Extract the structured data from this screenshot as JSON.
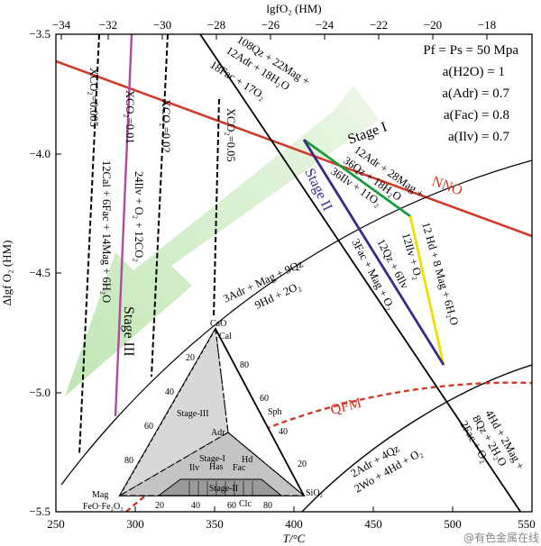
{
  "axes": {
    "bottom_label": "T/°C",
    "top_label": "lgfO₂ (HM)",
    "left_label": "Δlgf O₂ (HM)",
    "bottom_ticks": [
      "250",
      "300",
      "350",
      "400",
      "450",
      "500",
      "550"
    ],
    "top_ticks": [
      "−34",
      "−32",
      "−30",
      "−28",
      "−26",
      "−24",
      "−22",
      "−20",
      "−18"
    ],
    "left_ticks": [
      "−3.5",
      "−4.0",
      "−4.5",
      "−5.0",
      "−5.5"
    ]
  },
  "conditions": [
    "Pf = Ps = 50 Mpa",
    "a(H2O) = 1",
    "a(Adr) = 0.7",
    "a(Fac) = 0.8",
    "a(Ilv) = 0.7"
  ],
  "buffers": {
    "nno": "NNO",
    "qfm": "QFM"
  },
  "stages": {
    "stage1": "Stage I",
    "stage2": "Stage II",
    "stage3": "Stage III"
  },
  "reactions": {
    "adr_mag_top": "108Qz + 22Mag +",
    "adr_mag_mid": "12Adr + 18H₂O",
    "adr_mag_bot": "18Fac + 17O₂",
    "green_1": "12Adr + 28Mag +",
    "green_2": "36Qz + 18H₂O",
    "green_3": "36Ilv + 11O₂",
    "yellow_1": "12 Hd + 8 Mag + 6H₂O",
    "yellow_2": "12Ilv + O₂",
    "purple_1": "12Qz + 6Ilv",
    "purple_2": "3Fac + Mag + O₂",
    "hd_1": "3Adr + Mag + 9Qz",
    "hd_2": "9Hd + 2O₂",
    "wo_1": "2Adr + 4Qz",
    "wo_2": "2Wo + 4Hd + O₂",
    "fac_1": "4Hd + 2Mag +",
    "fac_2": "8Qz + 2H₂O",
    "fac_3": "2Fac + O₂",
    "co2_1": "12Cal + 6Fac + 14Mag + 6H₂O",
    "co2_2": "24Ilv + O₂ + 12CO₂"
  },
  "xco2": [
    "XCO₂=0.005",
    "XCO₂=0.01",
    "XCO₂=0.02",
    "XCO₂=0.05"
  ],
  "ternary": {
    "cao": "CaO",
    "cal": "Cal",
    "mag": "Mag",
    "feo": "FeO·Fe₂O₃",
    "sio2": "SiO₂",
    "adr": "Adr",
    "hd": "Hd",
    "ilv": "Ilv",
    "hs": "Has",
    "fac": "Fac",
    "clc": "Clc",
    "sph": "Sph",
    "stage3": "Stage-III",
    "stage1": "Stage-I",
    "stage2": "Stage-II",
    "left_ticks": [
      "20",
      "40",
      "60",
      "80"
    ],
    "right_ticks": [
      "80",
      "60",
      "40",
      "20"
    ],
    "bottom_ticks": [
      "20",
      "40",
      "60",
      "80"
    ]
  },
  "watermark": "@有色金属在线",
  "colors": {
    "nno": "#d03a2a",
    "green": "#1a9a3a",
    "yellow": "#f0e000",
    "purple": "#3a2a8a",
    "xco2_01": "#b04aa0",
    "arrow": "#bfe6b0"
  }
}
